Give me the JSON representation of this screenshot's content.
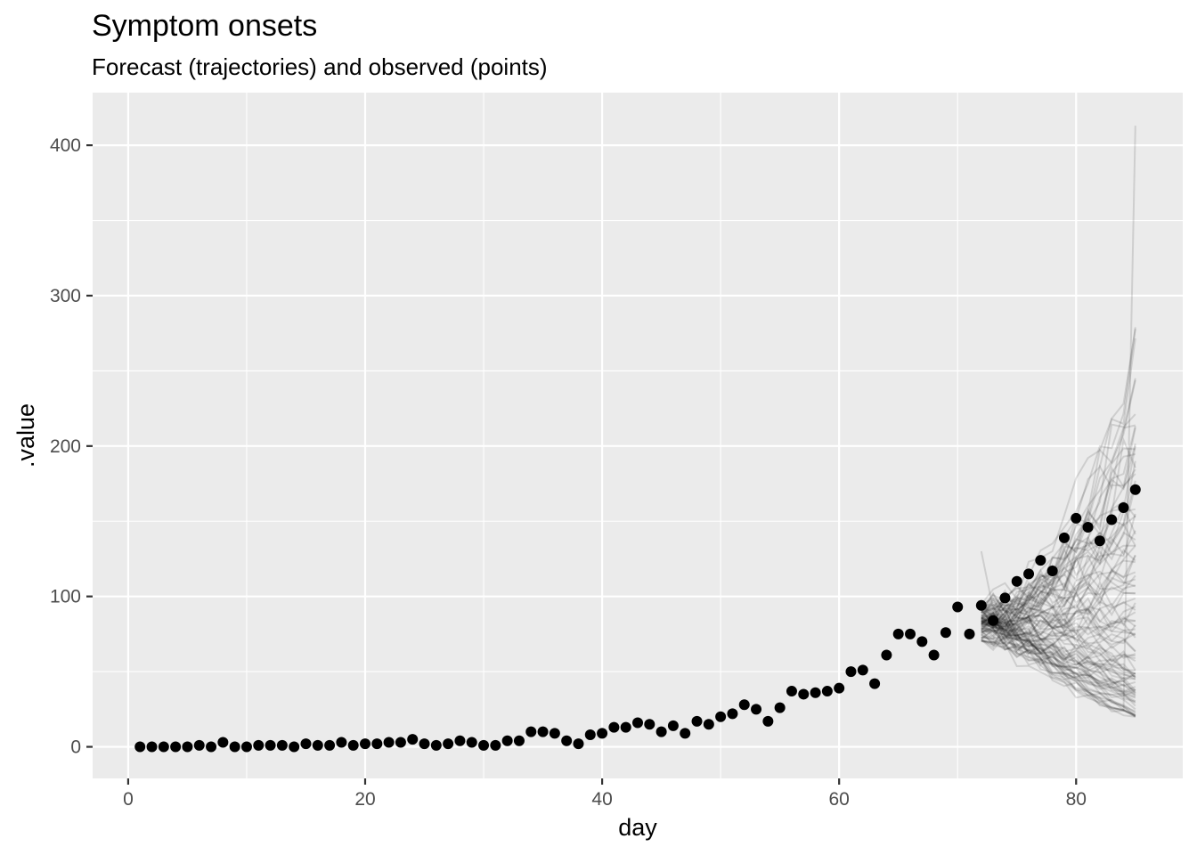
{
  "chart_data": {
    "type": "scatter",
    "title": "Symptom onsets",
    "subtitle": "Forecast (trajectories) and observed (points)",
    "xlabel": "day",
    "ylabel": ".value",
    "xlim": [
      -3,
      89
    ],
    "ylim": [
      -21,
      435
    ],
    "x_ticks": [
      0,
      20,
      40,
      60,
      80
    ],
    "x_tick_labels": [
      "0",
      "20",
      "40",
      "60",
      "80"
    ],
    "y_ticks": [
      0,
      100,
      200,
      300,
      400
    ],
    "y_tick_labels": [
      "0",
      "100",
      "200",
      "300",
      "400"
    ],
    "grid": true,
    "background": "#ebebeb",
    "observed": {
      "x": [
        1,
        2,
        3,
        4,
        5,
        6,
        7,
        8,
        9,
        10,
        11,
        12,
        13,
        14,
        15,
        16,
        17,
        18,
        19,
        20,
        21,
        22,
        23,
        24,
        25,
        26,
        27,
        28,
        29,
        30,
        31,
        32,
        33,
        34,
        35,
        36,
        37,
        38,
        39,
        40,
        41,
        42,
        43,
        44,
        45,
        46,
        47,
        48,
        49,
        50,
        51,
        52,
        53,
        54,
        55,
        56,
        57,
        58,
        59,
        60,
        61,
        62,
        63,
        64,
        65,
        66,
        67,
        68,
        69,
        70,
        71,
        72,
        73,
        74,
        75,
        76,
        77,
        78,
        79,
        80,
        81,
        82,
        83,
        84,
        85
      ],
      "y": [
        0,
        0,
        0,
        0,
        0,
        1,
        0,
        3,
        0,
        0,
        1,
        1,
        1,
        0,
        2,
        1,
        1,
        3,
        1,
        2,
        2,
        3,
        3,
        5,
        2,
        1,
        2,
        4,
        3,
        1,
        1,
        4,
        4,
        10,
        10,
        9,
        4,
        2,
        8,
        9,
        13,
        13,
        16,
        15,
        10,
        14,
        9,
        17,
        15,
        20,
        22,
        28,
        25,
        17,
        26,
        37,
        35,
        36,
        37,
        39,
        50,
        51,
        42,
        61,
        75,
        75,
        70,
        61,
        76,
        93,
        75,
        94,
        84,
        99,
        110,
        115,
        124,
        117,
        139,
        152,
        146,
        137,
        151,
        159,
        171
      ],
      "color": "#000000"
    },
    "forecast": {
      "x_start": 72,
      "x_end": 85,
      "n_trajectories": 100,
      "start_range": [
        62,
        130
      ],
      "end_range": [
        20,
        413
      ],
      "color": "#000000",
      "opacity": 0.12
    }
  }
}
